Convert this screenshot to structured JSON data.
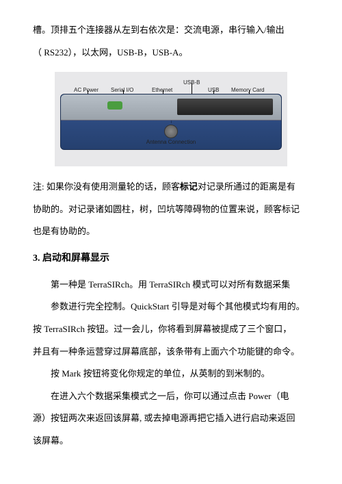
{
  "intro": {
    "line1": "槽。顶排五个连接器从左到右依次是：交流电源，串行输入/输出",
    "line2": "（ RS232），以太网，USB-B，USB-A。"
  },
  "diagram": {
    "labels": {
      "ac": "AC Power",
      "serial": "Serial I/O",
      "eth": "Ethernet",
      "usbb": "USB-B",
      "usb": "USB",
      "mem": "Memory Card",
      "ant": "Antenna Connection"
    },
    "colors": {
      "bg": "#e8e8ea",
      "device_top": "#b8c0c8",
      "device_body": "#2d4a7f",
      "green_port": "#4a9d3f"
    }
  },
  "note": {
    "prefix": "注: ",
    "l1a": "如果你没有使用测量轮的话，顾客",
    "l1bold": "标记",
    "l1b": "对记录所通过的距离是有",
    "l2": "协助的。对记录诸如圆柱，树，凹坑等障碍物的位置来说，顾客标记",
    "l3": "也是有协助的。"
  },
  "section3": {
    "heading": "3. 启动和屏幕显示",
    "p1l1": "第一种是 TerraSIRch。用 TerraSIRch 模式可以对所有数据采集",
    "p1l2": "参数进行完全控制。QuickStart 引导是对每个其他模式均有用的。",
    "p2l1": "按 TerraSIRch 按钮。过一会儿，你将看到屏幕被提成了三个窗口，",
    "p2l2": "并且有一种条运营穿过屏幕底部，该条带有上面六个功能键的命令。",
    "p3": "按 Mark 按钮将变化你规定的单位，从英制的到米制的。",
    "p4l1": "在进入六个数据采集模式之一后，你可以通过点击 Power（电",
    "p4l2": "源）按钮两次来返回该屏幕, 或去掉电源再把它插入进行启动来返回",
    "p4l3": "该屏幕。"
  }
}
